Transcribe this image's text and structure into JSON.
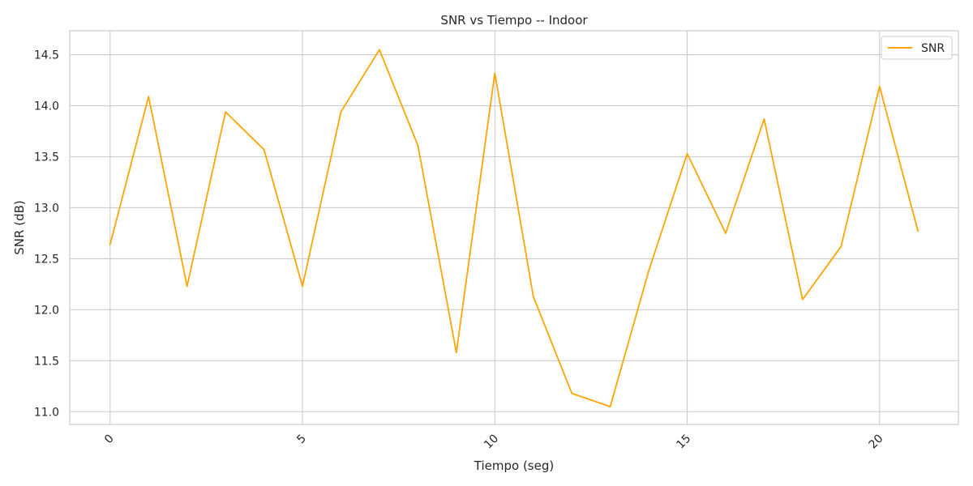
{
  "chart_data": {
    "type": "line",
    "title": "SNR vs Tiempo -- Indoor",
    "xlabel": "Tiempo (seg)",
    "ylabel": "SNR (dB)",
    "xlim": [
      -1.05,
      22.05
    ],
    "ylim": [
      10.875,
      14.735
    ],
    "xticks": [
      0,
      5,
      10,
      15,
      20
    ],
    "xtick_labels": [
      "0",
      "5",
      "10",
      "15",
      "20"
    ],
    "yticks": [
      11.0,
      11.5,
      12.0,
      12.5,
      13.0,
      13.5,
      14.0,
      14.5
    ],
    "ytick_labels": [
      "11.0",
      "11.5",
      "12.0",
      "12.5",
      "13.0",
      "13.5",
      "14.0",
      "14.5"
    ],
    "grid": true,
    "legend_position": "top-right",
    "series": [
      {
        "name": "SNR",
        "color": "#FFA500",
        "x": [
          0,
          1,
          2,
          3,
          4,
          5,
          6,
          7,
          8,
          9,
          10,
          11,
          12,
          13,
          14,
          15,
          16,
          17,
          18,
          19,
          20,
          21
        ],
        "y": [
          12.64,
          14.09,
          12.23,
          13.94,
          13.57,
          12.23,
          13.94,
          14.55,
          13.61,
          11.58,
          14.32,
          12.13,
          11.18,
          11.05,
          12.38,
          13.53,
          12.75,
          13.87,
          12.1,
          12.62,
          14.19,
          12.77
        ]
      }
    ]
  }
}
